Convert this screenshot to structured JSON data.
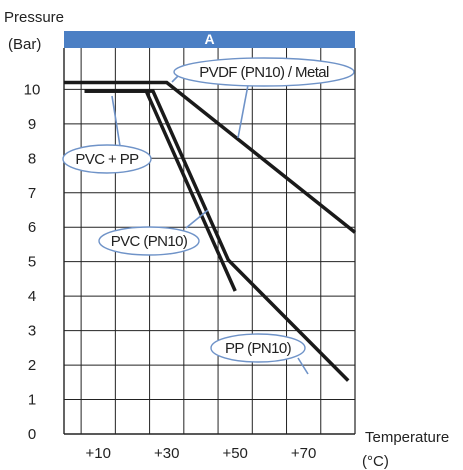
{
  "chart_data": {
    "type": "line",
    "title": "",
    "ylabel": "Pressure",
    "yunit": "(Bar)",
    "xlabel": "Temperature",
    "xunit": "(°C)",
    "band_label": "A",
    "xlim": [
      0,
      85
    ],
    "ylim": [
      0,
      11.2
    ],
    "x_ticks": [
      10,
      30,
      50,
      70
    ],
    "x_tick_labels": [
      "+10",
      "+30",
      "+50",
      "+70"
    ],
    "y_ticks": [
      0,
      1,
      2,
      3,
      4,
      5,
      6,
      7,
      8,
      9,
      10
    ],
    "y_tick_labels": [
      "0",
      "1",
      "2",
      "3",
      "4",
      "5",
      "6",
      "7",
      "8",
      "9",
      "10"
    ],
    "grid": true,
    "colors": {
      "band": "#4b7fc4",
      "line": "#1a1a1a",
      "callout": "#6f93c8",
      "grid": "#222222"
    },
    "series": [
      {
        "name": "PVDF (PN10) / Metal",
        "x": [
          0,
          30,
          85
        ],
        "y": [
          10.2,
          10.2,
          5.85
        ]
      },
      {
        "name": "PVC (PN10)",
        "x": [
          6,
          24,
          50
        ],
        "y": [
          9.95,
          9.95,
          4.15
        ]
      },
      {
        "name": "PP (PN10)",
        "x": [
          6,
          26,
          48,
          83
        ],
        "y": [
          9.95,
          9.95,
          5.05,
          1.55
        ]
      }
    ],
    "annotations": [
      {
        "text": "PVDF (PN10) / Metal"
      },
      {
        "text": "PVC + PP"
      },
      {
        "text": "PVC (PN10)"
      },
      {
        "text": "PP (PN10)"
      }
    ]
  }
}
